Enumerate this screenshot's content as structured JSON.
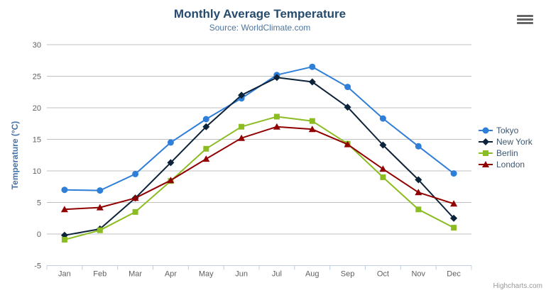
{
  "header": {
    "title": "Monthly Average Temperature",
    "subtitle": "Source: WorldClimate.com"
  },
  "credits": "Highcharts.com",
  "colors": {
    "title": "#274b6d",
    "subtitle": "#4d759e",
    "axis_title": "#4572A7",
    "axis_labels": "#606060",
    "grid": "#C0C0C0",
    "axis_line": "#C0D0E0",
    "legend_text": "#3E576F",
    "credits": "#999999",
    "export_icon": "#666666"
  },
  "chart_data": {
    "type": "line",
    "title": "Monthly Average Temperature",
    "subtitle": "Source: WorldClimate.com",
    "categories": [
      "Jan",
      "Feb",
      "Mar",
      "Apr",
      "May",
      "Jun",
      "Jul",
      "Aug",
      "Sep",
      "Oct",
      "Nov",
      "Dec"
    ],
    "xlabel": "",
    "ylabel": "Temperature (°C)",
    "ylim": [
      -5,
      30
    ],
    "ytick_interval": 5,
    "grid": true,
    "legend_position": "right",
    "series": [
      {
        "name": "Tokyo",
        "color": "#2f7ed8",
        "marker": "circle",
        "values": [
          7.0,
          6.9,
          9.5,
          14.5,
          18.2,
          21.5,
          25.2,
          26.5,
          23.3,
          18.3,
          13.9,
          9.6
        ]
      },
      {
        "name": "New York",
        "color": "#0d233a",
        "marker": "diamond",
        "values": [
          -0.2,
          0.8,
          5.7,
          11.3,
          17.0,
          22.0,
          24.8,
          24.1,
          20.1,
          14.1,
          8.6,
          2.5
        ]
      },
      {
        "name": "Berlin",
        "color": "#8bbc21",
        "marker": "square",
        "values": [
          -0.9,
          0.6,
          3.5,
          8.4,
          13.5,
          17.0,
          18.6,
          17.9,
          14.3,
          9.0,
          3.9,
          1.0
        ]
      },
      {
        "name": "London",
        "color": "#910000",
        "marker": "triangle",
        "values": [
          3.9,
          4.2,
          5.7,
          8.5,
          11.9,
          15.2,
          17.0,
          16.6,
          14.2,
          10.3,
          6.6,
          4.8
        ]
      }
    ]
  }
}
